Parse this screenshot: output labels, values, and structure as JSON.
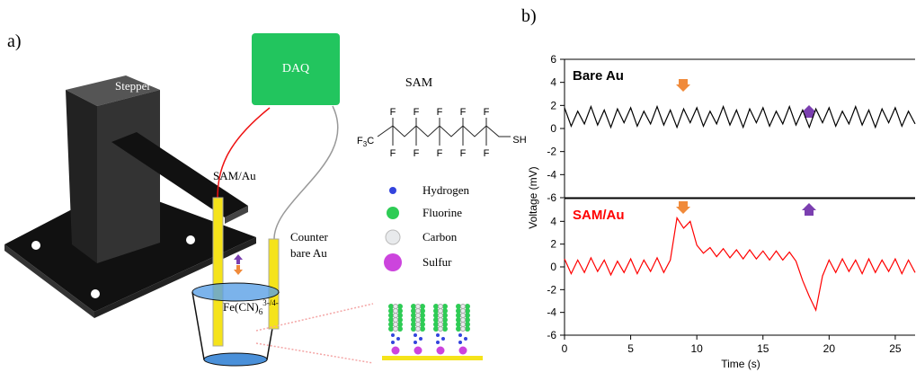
{
  "diagram": {
    "panel_label": "a)",
    "stepper": "Stepper",
    "daq": "DAQ",
    "sam_heading": "SAM",
    "working_electrode": "SAM/Au",
    "counter_electrode": [
      "Counter",
      "bare Au"
    ],
    "solution": {
      "base": "Fe(CN)",
      "subscript": "6",
      "superscript": "3-/4-"
    },
    "molecule": {
      "terminal": {
        "base": "F",
        "subscript": "3",
        "tail": "C"
      },
      "upper_fluorines": [
        "F",
        "F",
        "F",
        "F",
        "F"
      ],
      "lower_fluorines": [
        "F",
        "F",
        "F",
        "F",
        "F"
      ],
      "thiol": "SH"
    },
    "atom_legend": [
      "Hydrogen",
      "Fluorine",
      "Carbon",
      "Sulfur"
    ]
  },
  "panel_b_label": "b)",
  "y_axis_label": "Voltage (mV)",
  "chart_data": [
    {
      "type": "line",
      "xlim": [
        0,
        26.5
      ],
      "ylim": [
        -6,
        6
      ],
      "yticks": [
        -6,
        -4,
        -2,
        0,
        2,
        4,
        6
      ],
      "x": [
        0,
        0.5,
        1,
        1.5,
        2,
        2.5,
        3,
        3.5,
        4,
        4.5,
        5,
        5.5,
        6,
        6.5,
        7,
        7.5,
        8,
        8.5,
        9,
        9.5,
        10,
        10.5,
        11,
        11.5,
        12,
        12.5,
        13,
        13.5,
        14,
        14.5,
        15,
        15.5,
        16,
        16.5,
        17,
        17.5,
        18,
        18.5,
        19,
        19.5,
        20,
        20.5,
        21,
        21.5,
        22,
        22.5,
        23,
        23.5,
        24,
        24.5,
        25,
        25.5,
        26,
        26.5
      ],
      "series": [
        {
          "name": "Bare Au",
          "color": "#000000",
          "values": [
            1.8,
            0.2,
            1.5,
            0.4,
            1.9,
            0.3,
            1.6,
            0.1,
            1.7,
            0.5,
            1.8,
            0.2,
            1.5,
            0.4,
            1.9,
            0.3,
            1.6,
            0.1,
            1.7,
            0.5,
            1.8,
            0.2,
            1.5,
            0.4,
            1.9,
            0.3,
            1.6,
            0.1,
            1.7,
            0.5,
            1.8,
            0.2,
            1.5,
            0.4,
            1.9,
            0.3,
            1.6,
            0.1,
            1.7,
            0.5,
            1.8,
            0.2,
            1.5,
            0.4,
            1.9,
            0.3,
            1.6,
            0.1,
            1.7,
            0.5,
            1.8,
            0.2,
            1.5,
            0.4
          ]
        }
      ]
    },
    {
      "type": "line",
      "xlim": [
        0,
        26.5
      ],
      "ylim": [
        -6,
        6
      ],
      "yticks": [
        -6,
        -4,
        -2,
        0,
        2,
        4
      ],
      "xticks": [
        0,
        5,
        10,
        15,
        20,
        25
      ],
      "xlabel": "Time (s)",
      "x": [
        0,
        0.5,
        1,
        1.5,
        2,
        2.5,
        3,
        3.5,
        4,
        4.5,
        5,
        5.5,
        6,
        6.5,
        7,
        7.5,
        8,
        8.5,
        9,
        9.5,
        10,
        10.5,
        11,
        11.5,
        12,
        12.5,
        13,
        13.5,
        14,
        14.5,
        15,
        15.5,
        16,
        16.5,
        17,
        17.5,
        18,
        18.5,
        19,
        19.5,
        20,
        20.5,
        21,
        21.5,
        22,
        22.5,
        23,
        23.5,
        24,
        24.5,
        25,
        25.5,
        26,
        26.5
      ],
      "series": [
        {
          "name": "SAM/Au",
          "color": "#ff0000",
          "values": [
            0.7,
            -0.6,
            0.6,
            -0.5,
            0.8,
            -0.4,
            0.6,
            -0.7,
            0.5,
            -0.5,
            0.7,
            -0.6,
            0.6,
            -0.4,
            0.8,
            -0.5,
            0.6,
            4.3,
            3.4,
            4.0,
            1.9,
            1.2,
            1.7,
            0.9,
            1.6,
            0.8,
            1.5,
            0.7,
            1.5,
            0.7,
            1.4,
            0.6,
            1.4,
            0.6,
            1.3,
            0.5,
            -1.2,
            -2.6,
            -3.8,
            -0.8,
            0.6,
            -0.5,
            0.7,
            -0.4,
            0.6,
            -0.6,
            0.7,
            -0.5,
            0.6,
            -0.4,
            0.7,
            -0.6,
            0.6,
            -0.5
          ]
        }
      ]
    }
  ]
}
